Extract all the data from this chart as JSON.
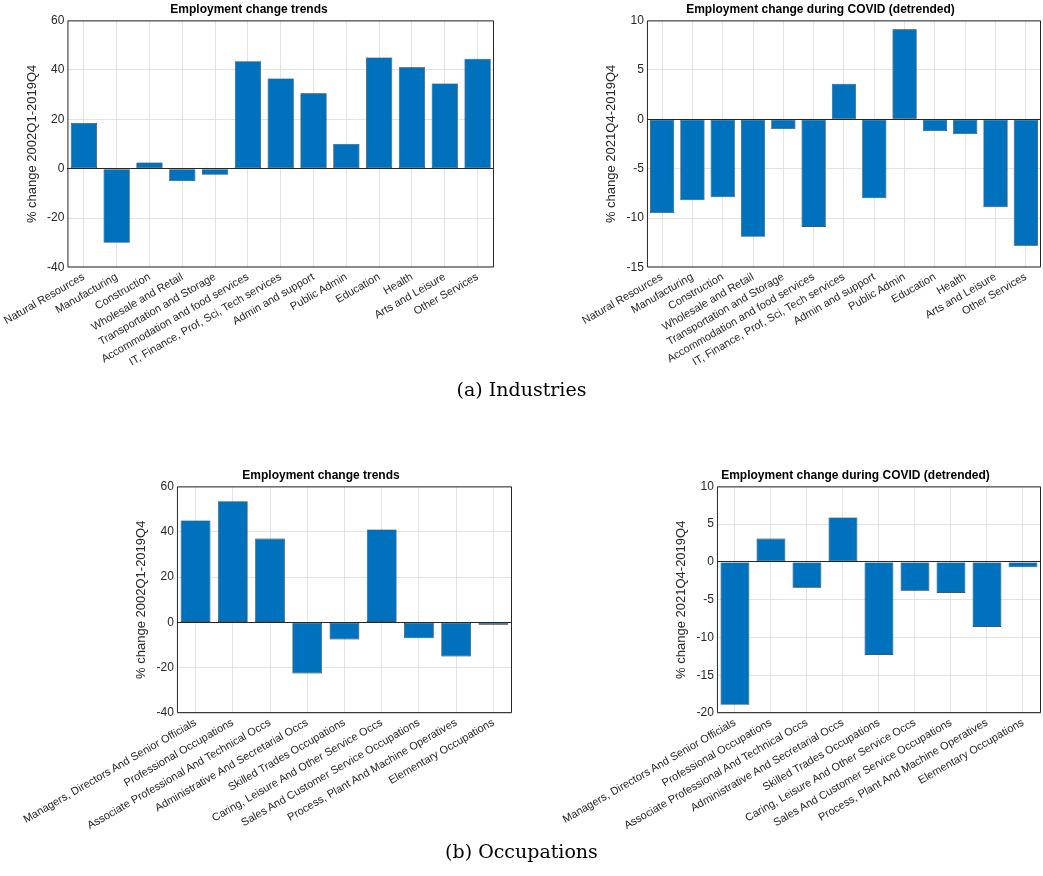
{
  "chart_data": [
    {
      "type": "bar",
      "title": "Employment change trends",
      "ylabel": "% change 2002Q1-2019Q4",
      "categories": [
        "Natural Resources",
        "Manufacturing",
        "Construction",
        "Wholesale and Retail",
        "Transportation and Storage",
        "Accommodation and food services",
        "IT, Finance, Prof, Sci, Tech services",
        "Admin and support",
        "Public Admin",
        "Education",
        "Health",
        "Arts and Leisure",
        "Other Services"
      ],
      "values": [
        18.5,
        -30,
        2.5,
        -5,
        -2.5,
        43.5,
        36.5,
        30.5,
        10,
        45,
        41,
        34.5,
        44.5
      ],
      "color": "#0072bd",
      "ylim": [
        -40,
        60
      ],
      "yticks": [
        -40,
        -20,
        0,
        20,
        40,
        60
      ],
      "grid": true,
      "annotations": [
        "(a) Industries"
      ]
    },
    {
      "type": "bar",
      "title": "Employment change during COVID (detrended)",
      "ylabel": "% change 2021Q4-2019Q4",
      "categories": [
        "Natural Resources",
        "Manufacturing",
        "Construction",
        "Wholesale and Retail",
        "Transportation and Storage",
        "Accommodation and food services",
        "IT, Finance, Prof, Sci, Tech services",
        "Admin and support",
        "Public Admin",
        "Education",
        "Health",
        "Arts and Leisure",
        "Other Services"
      ],
      "values": [
        -9.5,
        -8.2,
        -7.9,
        -11.9,
        -1,
        -10.9,
        3.6,
        -8,
        9.1,
        -1.2,
        -1.5,
        -8.9,
        -12.8
      ],
      "color": "#0072bd",
      "ylim": [
        -15,
        10
      ],
      "yticks": [
        -15,
        -10,
        -5,
        0,
        5,
        10
      ],
      "grid": true
    },
    {
      "type": "bar",
      "title": "Employment change trends",
      "ylabel": "% change 2002Q1-2019Q4",
      "categories": [
        "Managers, Directors And Senior Officials",
        "Professional Occupations",
        "Associate Professional And Technical Occs",
        "Administrative And Secretarial Occs",
        "Skilled Trades Occupations",
        "Caring, Leisure And Other Service Occs",
        "Sales And Customer Service Occupations",
        "Process, Plant And Machine Operatives",
        "Elementary Occupations"
      ],
      "values": [
        45,
        53.5,
        37,
        -22.5,
        -7.5,
        41,
        -7,
        -15,
        -1
      ],
      "color": "#0072bd",
      "ylim": [
        -40,
        60
      ],
      "yticks": [
        -40,
        -20,
        0,
        20,
        40,
        60
      ],
      "grid": true,
      "annotations": [
        "(b) Occupations"
      ]
    },
    {
      "type": "bar",
      "title": "Employment change during COVID (detrended)",
      "ylabel": "% change 2021Q4-2019Q4",
      "categories": [
        "Managers, Directors And Senior Officials",
        "Professional Occupations",
        "Associate Professional And Technical Occs",
        "Administrative And Secretarial Occs",
        "Skilled Trades Occupations",
        "Caring, Leisure And Other Service Occs",
        "Sales And Customer Service Occupations",
        "Process, Plant And Machine Operatives",
        "Elementary Occupations"
      ],
      "values": [
        -18.9,
        3.1,
        -3.4,
        5.9,
        -12.3,
        -3.8,
        -4.1,
        -8.6,
        -0.7
      ],
      "color": "#0072bd",
      "ylim": [
        -20,
        10
      ],
      "yticks": [
        -20,
        -15,
        -10,
        -5,
        0,
        5,
        10
      ],
      "grid": true
    }
  ]
}
